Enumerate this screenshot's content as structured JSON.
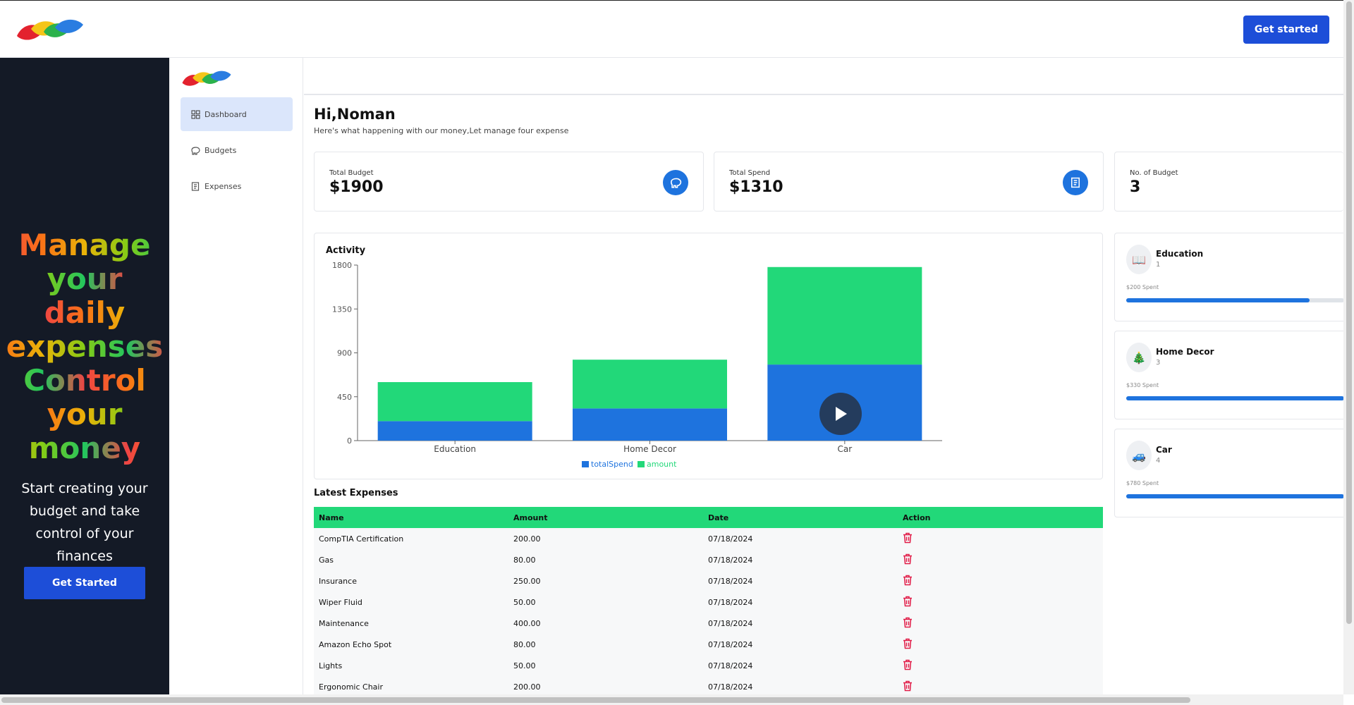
{
  "header": {
    "cta_label": "Get started"
  },
  "hero": {
    "title_words": [
      "Manage",
      "your",
      "daily",
      "expenses",
      "Control",
      "your",
      "money"
    ],
    "subtitle": "Start creating your budget and take control of your finances",
    "cta_label": "Get Started"
  },
  "sidebar": {
    "items": [
      {
        "label": "Dashboard",
        "icon": "grid-icon",
        "active": true
      },
      {
        "label": "Budgets",
        "icon": "piggy-bank-icon",
        "active": false
      },
      {
        "label": "Expenses",
        "icon": "receipt-icon",
        "active": false
      }
    ]
  },
  "greeting": {
    "title": "Hi,Noman",
    "subtitle": "Here's what happening with our money,Let manage four expense"
  },
  "stats": [
    {
      "label": "Total Budget",
      "value": "$1900",
      "icon": "piggy-bank-icon"
    },
    {
      "label": "Total Spend",
      "value": "$1310",
      "icon": "receipt-icon"
    },
    {
      "label": "No. of Budget",
      "value": "3",
      "icon": "wallet-icon"
    }
  ],
  "activity": {
    "title": "Activity"
  },
  "chart_data": {
    "type": "bar",
    "stacked": true,
    "categories": [
      "Education",
      "Home Decor",
      "Car"
    ],
    "series": [
      {
        "name": "totalSpend",
        "values": [
          200,
          330,
          780
        ],
        "color": "#1e73de"
      },
      {
        "name": "amount",
        "values": [
          400,
          500,
          1000
        ],
        "color": "#22d879"
      }
    ],
    "ylim": [
      0,
      1800
    ],
    "yticks": [
      0,
      450,
      900,
      1350,
      1800
    ],
    "legend": "bottom"
  },
  "budgets": [
    {
      "name": "Education",
      "count": "1",
      "spent": "$200 Spent",
      "icon": "book-icon",
      "glyph": "📖",
      "progress": 0.84
    },
    {
      "name": "Home Decor",
      "count": "3",
      "spent": "$330 Spent",
      "icon": "tree-icon",
      "glyph": "🎄",
      "progress": 1.0
    },
    {
      "name": "Car",
      "count": "4",
      "spent": "$780 Spent",
      "icon": "car-icon",
      "glyph": "🚙",
      "progress": 1.0
    }
  ],
  "latest": {
    "title": "Latest Expenses",
    "headers": [
      "Name",
      "Amount",
      "Date",
      "Action"
    ],
    "rows": [
      {
        "name": "CompTIA Certification",
        "amount": "200.00",
        "date": "07/18/2024"
      },
      {
        "name": "Gas",
        "amount": "80.00",
        "date": "07/18/2024"
      },
      {
        "name": "Insurance",
        "amount": "250.00",
        "date": "07/18/2024"
      },
      {
        "name": "Wiper Fluid",
        "amount": "50.00",
        "date": "07/18/2024"
      },
      {
        "name": "Maintenance",
        "amount": "400.00",
        "date": "07/18/2024"
      },
      {
        "name": "Amazon Echo Spot",
        "amount": "80.00",
        "date": "07/18/2024"
      },
      {
        "name": "Lights",
        "amount": "50.00",
        "date": "07/18/2024"
      },
      {
        "name": "Ergonomic Chair",
        "amount": "200.00",
        "date": "07/18/2024"
      }
    ]
  },
  "colors": {
    "primary": "#1d4ed8",
    "accent_blue": "#1e73de",
    "accent_green": "#22d879",
    "hero_bg": "#141a26",
    "danger": "#e11d48"
  }
}
